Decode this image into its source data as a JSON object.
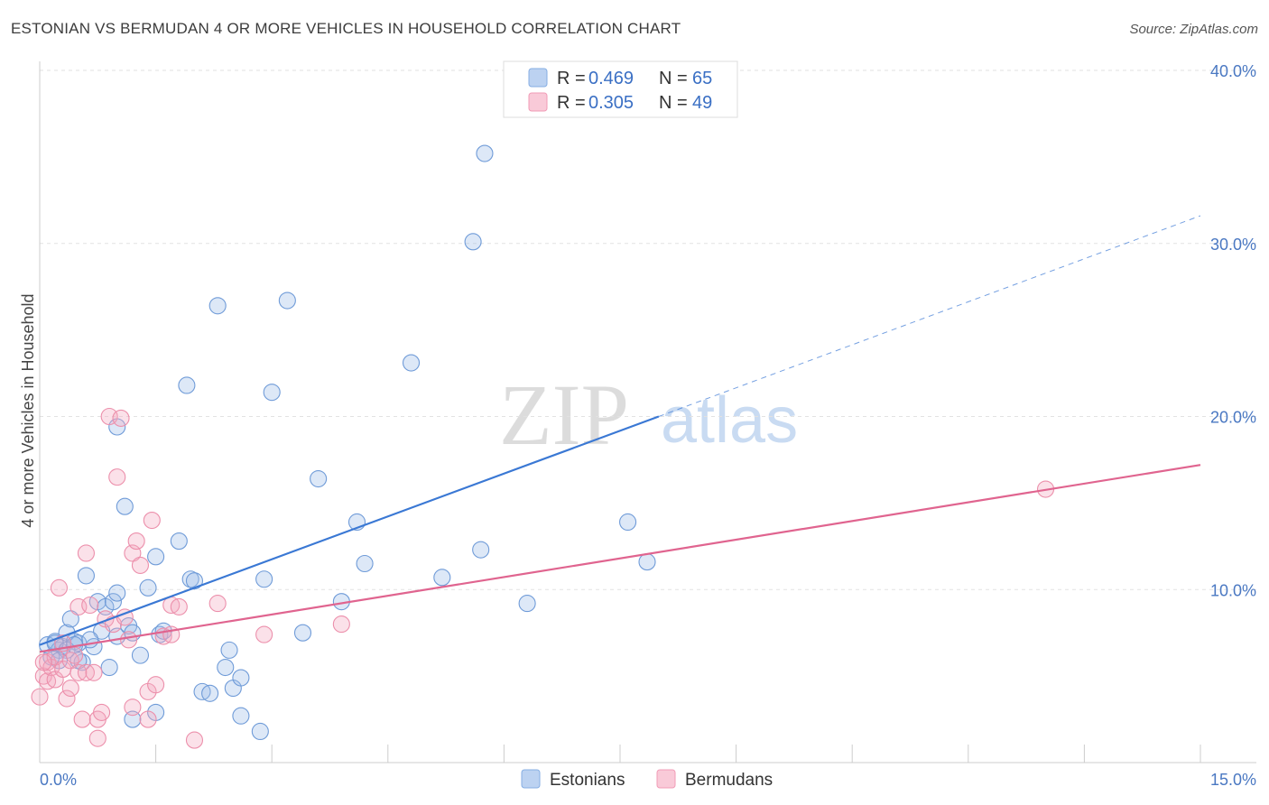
{
  "header": {
    "title": "ESTONIAN VS BERMUDAN 4 OR MORE VEHICLES IN HOUSEHOLD CORRELATION CHART",
    "source": "Source: ZipAtlas.com"
  },
  "watermark": {
    "zip": "ZIP",
    "atlas": "atlas"
  },
  "legend_top": [
    {
      "r_label": "R =",
      "r_value": "0.469",
      "n_label": "N =",
      "n_value": "65",
      "color": "#9dbde9"
    },
    {
      "r_label": "R =",
      "r_value": "0.305",
      "n_label": "N =",
      "n_value": "49",
      "color": "#f4a9c0"
    }
  ],
  "chart_data": {
    "type": "scatter",
    "title": "ESTONIAN VS BERMUDAN 4 OR MORE VEHICLES IN HOUSEHOLD CORRELATION CHART",
    "xlabel": "",
    "ylabel": "4 or more Vehicles in Household",
    "xlim": [
      0,
      15
    ],
    "ylim": [
      0,
      40
    ],
    "x_ticks": [
      "0.0%",
      "15.0%"
    ],
    "y_ticks": [
      "10.0%",
      "20.0%",
      "30.0%",
      "40.0%"
    ],
    "y_tick_values": [
      10,
      20,
      30,
      40
    ],
    "grid": true,
    "legend_position": "top-center",
    "series": [
      {
        "name": "Estonians",
        "color": "#9dbde9",
        "stroke": "#6f9bd8",
        "trend": {
          "x0": 0,
          "y0": 6.8,
          "x1": 8,
          "y1": 20.0,
          "dash_to_x": 15,
          "dash_to_y": 31.6,
          "color": "#3a78d4"
        },
        "points": [
          [
            0.1,
            6.8
          ],
          [
            0.2,
            7.0
          ],
          [
            0.25,
            6.5
          ],
          [
            0.3,
            6.7
          ],
          [
            0.35,
            7.5
          ],
          [
            0.4,
            8.3
          ],
          [
            0.45,
            7.0
          ],
          [
            0.5,
            6.9
          ],
          [
            0.55,
            5.8
          ],
          [
            0.6,
            10.8
          ],
          [
            0.7,
            6.7
          ],
          [
            0.75,
            9.3
          ],
          [
            0.8,
            7.6
          ],
          [
            0.85,
            9.0
          ],
          [
            0.9,
            5.5
          ],
          [
            0.95,
            9.3
          ],
          [
            1.0,
            7.3
          ],
          [
            1.0,
            9.8
          ],
          [
            1.0,
            19.4
          ],
          [
            1.1,
            14.8
          ],
          [
            1.15,
            7.9
          ],
          [
            1.2,
            7.5
          ],
          [
            1.2,
            2.5
          ],
          [
            1.3,
            6.2
          ],
          [
            1.4,
            10.1
          ],
          [
            1.5,
            2.9
          ],
          [
            1.5,
            11.9
          ],
          [
            1.55,
            7.4
          ],
          [
            1.6,
            7.6
          ],
          [
            1.8,
            12.8
          ],
          [
            1.9,
            21.8
          ],
          [
            1.95,
            10.6
          ],
          [
            2.0,
            10.5
          ],
          [
            2.1,
            4.1
          ],
          [
            2.2,
            4.0
          ],
          [
            2.3,
            26.4
          ],
          [
            2.4,
            5.5
          ],
          [
            2.45,
            6.5
          ],
          [
            2.5,
            4.3
          ],
          [
            2.6,
            2.7
          ],
          [
            2.6,
            4.9
          ],
          [
            2.85,
            1.8
          ],
          [
            2.9,
            10.6
          ],
          [
            3.0,
            21.4
          ],
          [
            3.2,
            26.7
          ],
          [
            3.4,
            7.5
          ],
          [
            3.6,
            16.4
          ],
          [
            3.9,
            9.3
          ],
          [
            4.1,
            13.9
          ],
          [
            4.2,
            11.5
          ],
          [
            4.8,
            23.1
          ],
          [
            5.2,
            10.7
          ],
          [
            5.6,
            30.1
          ],
          [
            5.7,
            12.3
          ],
          [
            5.75,
            35.2
          ],
          [
            6.3,
            9.2
          ],
          [
            7.6,
            13.9
          ],
          [
            7.85,
            11.6
          ],
          [
            0.15,
            6.1
          ],
          [
            0.2,
            6.9
          ],
          [
            0.5,
            5.9
          ],
          [
            0.65,
            7.1
          ],
          [
            0.35,
            6.5
          ],
          [
            0.25,
            5.9
          ],
          [
            0.45,
            6.8
          ]
        ]
      },
      {
        "name": "Bermudans",
        "color": "#f4a9c0",
        "stroke": "#ec8fab",
        "trend": {
          "x0": 0,
          "y0": 6.4,
          "x1": 15,
          "y1": 17.2,
          "color": "#e0648f"
        },
        "points": [
          [
            0.0,
            3.8
          ],
          [
            0.05,
            5.0
          ],
          [
            0.1,
            5.8
          ],
          [
            0.1,
            4.7
          ],
          [
            0.15,
            5.5
          ],
          [
            0.2,
            6.1
          ],
          [
            0.2,
            4.8
          ],
          [
            0.25,
            10.1
          ],
          [
            0.3,
            5.4
          ],
          [
            0.3,
            6.9
          ],
          [
            0.35,
            3.7
          ],
          [
            0.4,
            4.3
          ],
          [
            0.4,
            5.9
          ],
          [
            0.45,
            6.2
          ],
          [
            0.5,
            5.2
          ],
          [
            0.5,
            9.0
          ],
          [
            0.55,
            2.5
          ],
          [
            0.6,
            5.2
          ],
          [
            0.6,
            12.1
          ],
          [
            0.65,
            9.1
          ],
          [
            0.7,
            5.2
          ],
          [
            0.75,
            1.4
          ],
          [
            0.75,
            2.5
          ],
          [
            0.8,
            2.9
          ],
          [
            0.85,
            8.3
          ],
          [
            0.9,
            20.0
          ],
          [
            0.95,
            8.0
          ],
          [
            1.0,
            16.5
          ],
          [
            1.05,
            19.9
          ],
          [
            1.1,
            8.4
          ],
          [
            1.15,
            7.1
          ],
          [
            1.2,
            3.2
          ],
          [
            1.2,
            12.1
          ],
          [
            1.25,
            12.8
          ],
          [
            1.3,
            11.4
          ],
          [
            1.4,
            2.5
          ],
          [
            1.4,
            4.1
          ],
          [
            1.45,
            14.0
          ],
          [
            1.5,
            4.5
          ],
          [
            1.6,
            7.3
          ],
          [
            1.7,
            9.1
          ],
          [
            1.7,
            7.4
          ],
          [
            1.8,
            9.0
          ],
          [
            2.0,
            1.3
          ],
          [
            2.3,
            9.2
          ],
          [
            2.9,
            7.4
          ],
          [
            3.9,
            8.0
          ],
          [
            13.0,
            15.8
          ],
          [
            0.05,
            5.8
          ]
        ]
      }
    ]
  },
  "bottom_legend": [
    {
      "label": "Estonians",
      "color": "#9dbde9"
    },
    {
      "label": "Bermudans",
      "color": "#f4a9c0"
    }
  ]
}
